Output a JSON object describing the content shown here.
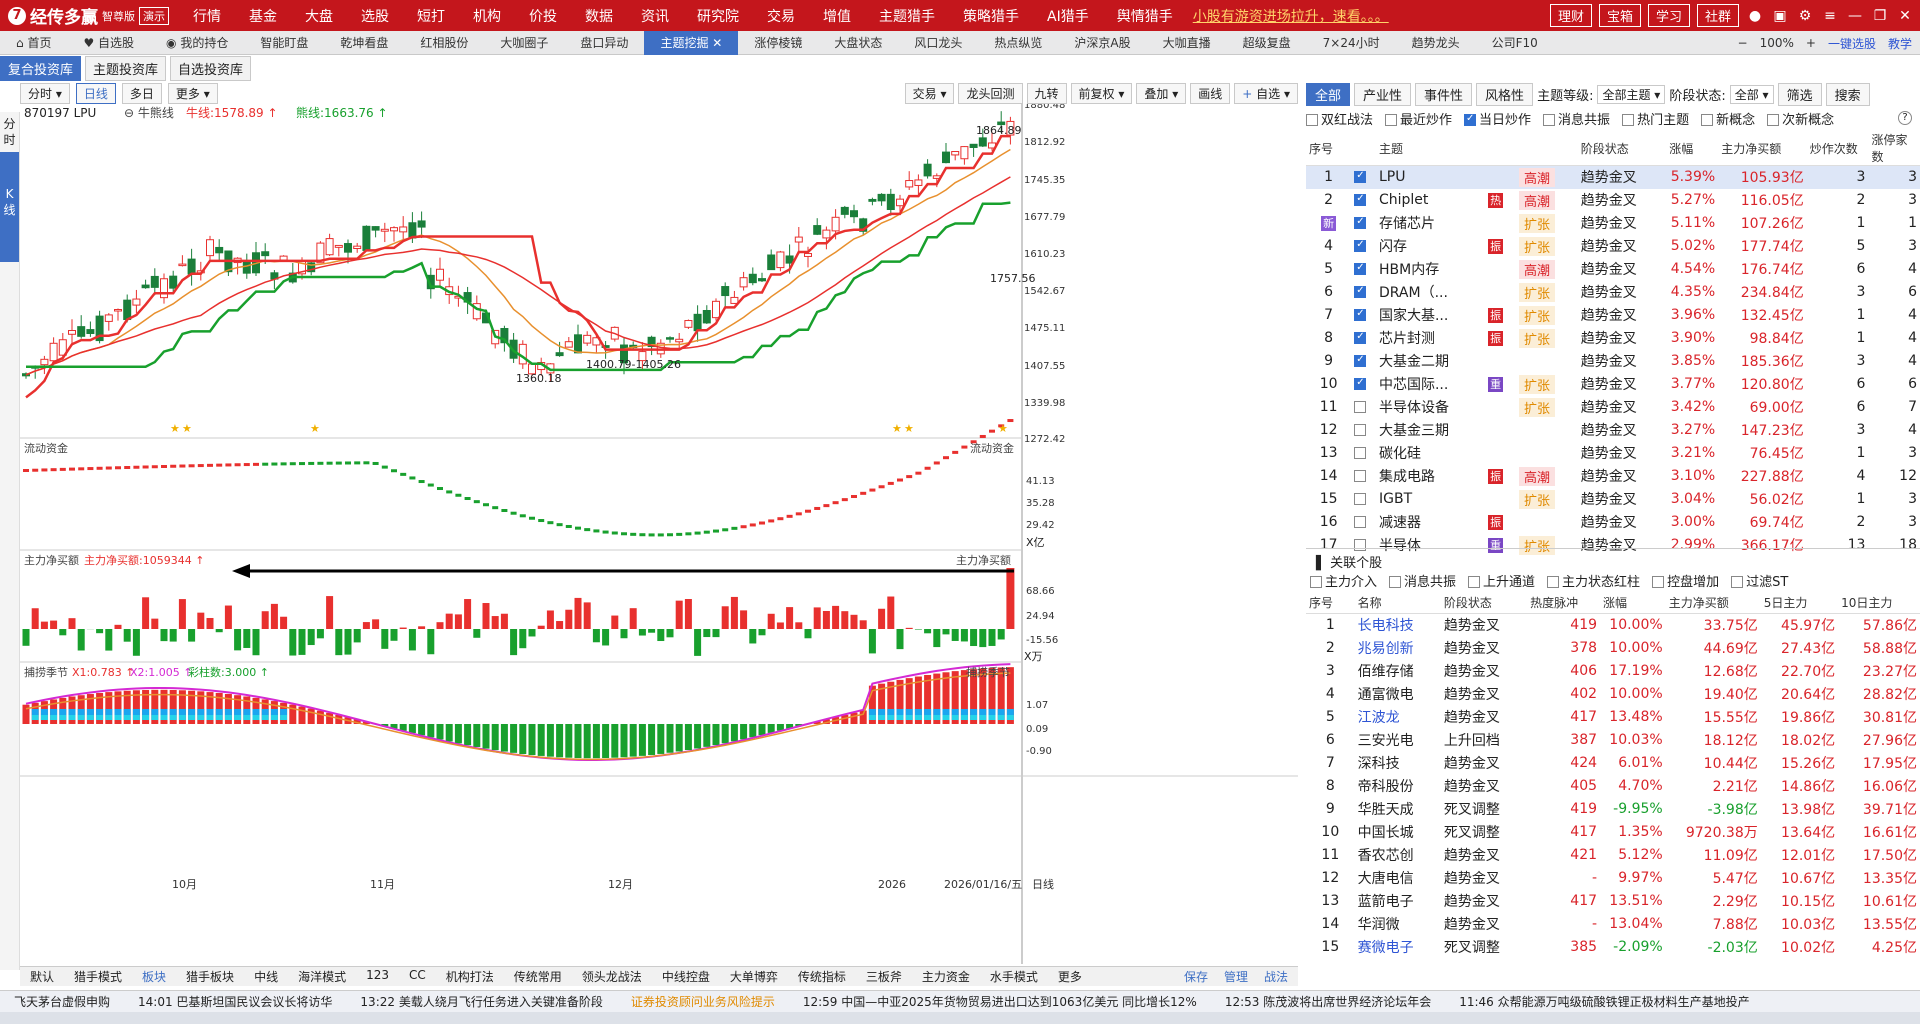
{
  "app": {
    "logo": "经传多赢",
    "edition": "智尊版",
    "demo": "演示"
  },
  "menus": [
    "行情",
    "基金",
    "大盘",
    "选股",
    "短打",
    "机构",
    "价投",
    "数据",
    "资讯",
    "研究院",
    "交易",
    "增值",
    "主题猎手",
    "策略猎手",
    "AI猎手",
    "舆情猎手"
  ],
  "menu_alert": "小股有游资进场拉升，速看。。。",
  "menu_right": [
    "理财",
    "宝箱",
    "学习",
    "社群"
  ],
  "tabs": [
    {
      "label": "首页",
      "icon": "home-icon"
    },
    {
      "label": "自选股",
      "icon": "heart-icon"
    },
    {
      "label": "我的持仓",
      "icon": "coin-icon"
    },
    {
      "label": "智能盯盘"
    },
    {
      "label": "乾坤看盘"
    },
    {
      "label": "红相股份"
    },
    {
      "label": "大咖圈子"
    },
    {
      "label": "盘口异动"
    },
    {
      "label": "主题挖掘",
      "active": true
    },
    {
      "label": "涨停棱镜"
    },
    {
      "label": "大盘状态"
    },
    {
      "label": "风口龙头"
    },
    {
      "label": "热点纵览"
    },
    {
      "label": "沪深京A股"
    },
    {
      "label": "大咖直播"
    },
    {
      "label": "超级复盘"
    },
    {
      "label": "7×24小时"
    },
    {
      "label": "趋势龙头"
    },
    {
      "label": "公司F10"
    }
  ],
  "tab_tools": {
    "zoom": "100%",
    "oneclick": "一键选股",
    "teach": "教学"
  },
  "subtabs": [
    "复合投资库",
    "主题投资库",
    "自选投资库"
  ],
  "leftstrip": [
    "分时",
    "K线"
  ],
  "chart_toolbar": {
    "left": [
      "分时",
      "日线",
      "多日",
      "更多"
    ],
    "right": [
      "交易",
      "龙头回测",
      "九转",
      "前复权",
      "叠加",
      "画线",
      "自选"
    ]
  },
  "chart": {
    "code": "870197 LPU",
    "indicator": "牛熊线",
    "bull_label": "牛线:1578.89",
    "bear_label": "熊线:1663.76",
    "y_ticks": [
      "1880.48",
      "1812.92",
      "1745.35",
      "1677.79",
      "1610.23",
      "1542.67",
      "1475.11",
      "1407.55",
      "1339.98",
      "1272.42"
    ],
    "annotations": {
      "high": "1864.89",
      "last": "1757.56",
      "range": "1400.79-1405.26",
      "low": "1360.18"
    },
    "flow_title": "流动资金",
    "flow_ticks": [
      "41.13",
      "35.28",
      "29.42"
    ],
    "flow_unit": "X亿",
    "main_title": "主力净买额",
    "main_value": "主力净买额:1059344",
    "main_ticks": [
      "68.66",
      "24.94",
      "-15.56"
    ],
    "main_unit": "X万",
    "catch_title": "捕捞季节",
    "catch_x1": "X1:0.783",
    "catch_x2": "X2:1.005",
    "catch_bar": "彩柱数:3.000",
    "catch_ticks": [
      "1.07",
      "0.09",
      "-0.90"
    ],
    "x_labels": [
      "10月",
      "11月",
      "12月",
      "2026",
      "2026/01/16/五"
    ],
    "x_unit": "日线"
  },
  "bottom_bar": [
    "默认",
    "猎手模式",
    "板块",
    "猎手板块",
    "中线",
    "海洋模式",
    "123",
    "CC",
    "机构打法",
    "传统常用",
    "领头龙战法",
    "中线控盘",
    "大单博弈",
    "传统指标",
    "三板斧",
    "主力资金",
    "水手模式",
    "更多"
  ],
  "bottom_right": [
    "保存",
    "管理",
    "战法"
  ],
  "ticker": [
    {
      "text": "飞天茅台虚假申购"
    },
    {
      "text": "14:01 巴基斯坦国民议会议长将访华"
    },
    {
      "text": "13:22 美载人绕月飞行任务进入关键准备阶段"
    },
    {
      "text": "证券投资顾问业务风险提示",
      "warn": true
    },
    {
      "text": "12:59 中国—中亚2025年货物贸易进出口达到1063亿美元 同比增长12%"
    },
    {
      "text": "12:53 陈茂波将出席世界经济论坛年会"
    },
    {
      "text": "11:46 众帮能源万吨级硫酸铁锂正极材料生产基地投产"
    }
  ],
  "right_panel": {
    "tabs": [
      "全部",
      "产业性",
      "事件性",
      "风格性"
    ],
    "level_label": "主题等级:",
    "level_value": "全部主题",
    "stage_label": "阶段状态:",
    "stage_value": "全部",
    "filter": "筛选",
    "search": "搜索",
    "filters": [
      {
        "label": "双红战法",
        "on": false
      },
      {
        "label": "最近炒作",
        "on": false
      },
      {
        "label": "当日炒作",
        "on": true
      },
      {
        "label": "消息共振",
        "on": false
      },
      {
        "label": "热门主题",
        "on": false
      },
      {
        "label": "新概念",
        "on": false
      },
      {
        "label": "次新概念",
        "on": false
      }
    ],
    "theme_headers": [
      "序号",
      "",
      "主题",
      "",
      "",
      "阶段状态",
      "涨幅",
      "主力净买额",
      "炒作次数",
      "涨停家数"
    ],
    "themes": [
      {
        "no": "1",
        "on": true,
        "name": "LPU",
        "tag": "",
        "stage": "高潮",
        "phase": "趋势金叉",
        "chg": "5.39%",
        "net": "105.93亿",
        "times": "3",
        "limit": "3"
      },
      {
        "no": "2",
        "on": true,
        "name": "Chiplet",
        "tag": "热",
        "stage": "高潮",
        "phase": "趋势金叉",
        "chg": "5.27%",
        "net": "116.05亿",
        "times": "2",
        "limit": "3"
      },
      {
        "no": "新",
        "on": true,
        "name": "存储芯片",
        "tag": "",
        "stage": "扩张",
        "phase": "趋势金叉",
        "chg": "5.11%",
        "net": "107.26亿",
        "times": "1",
        "limit": "1"
      },
      {
        "no": "4",
        "on": true,
        "name": "闪存",
        "tag": "振",
        "stage": "扩张",
        "phase": "趋势金叉",
        "chg": "5.02%",
        "net": "177.74亿",
        "times": "5",
        "limit": "3"
      },
      {
        "no": "5",
        "on": true,
        "name": "HBM内存",
        "tag": "",
        "stage": "高潮",
        "phase": "趋势金叉",
        "chg": "4.54%",
        "net": "176.74亿",
        "times": "6",
        "limit": "4"
      },
      {
        "no": "6",
        "on": true,
        "name": "DRAM（...",
        "tag": "",
        "stage": "扩张",
        "phase": "趋势金叉",
        "chg": "4.35%",
        "net": "234.84亿",
        "times": "3",
        "limit": "6"
      },
      {
        "no": "7",
        "on": true,
        "name": "国家大基...",
        "tag": "振",
        "stage": "扩张",
        "phase": "趋势金叉",
        "chg": "3.96%",
        "net": "132.45亿",
        "times": "1",
        "limit": "4"
      },
      {
        "no": "8",
        "on": true,
        "name": "芯片封测",
        "tag": "振",
        "stage": "扩张",
        "phase": "趋势金叉",
        "chg": "3.90%",
        "net": "98.84亿",
        "times": "1",
        "limit": "4"
      },
      {
        "no": "9",
        "on": true,
        "name": "大基金二期",
        "tag": "",
        "stage": "",
        "phase": "趋势金叉",
        "chg": "3.85%",
        "net": "185.36亿",
        "times": "3",
        "limit": "4"
      },
      {
        "no": "10",
        "on": true,
        "name": "中芯国际...",
        "tag": "重",
        "stage": "扩张",
        "phase": "趋势金叉",
        "chg": "3.77%",
        "net": "120.80亿",
        "times": "6",
        "limit": "6"
      },
      {
        "no": "11",
        "on": false,
        "name": "半导体设备",
        "tag": "",
        "stage": "扩张",
        "phase": "趋势金叉",
        "chg": "3.42%",
        "net": "69.00亿",
        "times": "6",
        "limit": "7"
      },
      {
        "no": "12",
        "on": false,
        "name": "大基金三期",
        "tag": "",
        "stage": "",
        "phase": "趋势金叉",
        "chg": "3.27%",
        "net": "147.23亿",
        "times": "3",
        "limit": "4"
      },
      {
        "no": "13",
        "on": false,
        "name": "碳化硅",
        "tag": "",
        "stage": "",
        "phase": "趋势金叉",
        "chg": "3.21%",
        "net": "76.45亿",
        "times": "1",
        "limit": "3"
      },
      {
        "no": "14",
        "on": false,
        "name": "集成电路",
        "tag": "振",
        "stage": "高潮",
        "phase": "趋势金叉",
        "chg": "3.10%",
        "net": "227.88亿",
        "times": "4",
        "limit": "12"
      },
      {
        "no": "15",
        "on": false,
        "name": "IGBT",
        "tag": "",
        "stage": "扩张",
        "phase": "趋势金叉",
        "chg": "3.04%",
        "net": "56.02亿",
        "times": "1",
        "limit": "3"
      },
      {
        "no": "16",
        "on": false,
        "name": "减速器",
        "tag": "振",
        "stage": "",
        "phase": "趋势金叉",
        "chg": "3.00%",
        "net": "69.74亿",
        "times": "2",
        "limit": "3"
      },
      {
        "no": "17",
        "on": false,
        "name": "半导体",
        "tag": "重",
        "stage": "扩张",
        "phase": "趋势金叉",
        "chg": "2.99%",
        "net": "366.17亿",
        "times": "13",
        "limit": "18"
      }
    ],
    "related_title": "关联个股",
    "related_filters": [
      "主力介入",
      "消息共振",
      "上升通道",
      "主力状态红柱",
      "控盘增加",
      "过滤ST"
    ],
    "related_headers": [
      "序号",
      "名称",
      "阶段状态",
      "热度脉冲",
      "涨幅",
      "主力净买额",
      "5日主力",
      "10日主力"
    ],
    "related": [
      {
        "no": "1",
        "name": "长电科技",
        "blue": true,
        "phase": "趋势金叉",
        "heat": "419",
        "chg": "10.00%",
        "net": "33.75亿",
        "d5": "45.97亿",
        "d10": "57.86亿"
      },
      {
        "no": "2",
        "name": "兆易创新",
        "blue": true,
        "phase": "趋势金叉",
        "heat": "378",
        "chg": "10.00%",
        "net": "44.69亿",
        "d5": "27.43亿",
        "d10": "58.88亿"
      },
      {
        "no": "3",
        "name": "佰维存储",
        "blue": false,
        "phase": "趋势金叉",
        "heat": "406",
        "chg": "17.19%",
        "net": "12.68亿",
        "d5": "22.70亿",
        "d10": "23.27亿"
      },
      {
        "no": "4",
        "name": "通富微电",
        "blue": false,
        "phase": "趋势金叉",
        "heat": "402",
        "chg": "10.00%",
        "net": "19.40亿",
        "d5": "20.64亿",
        "d10": "28.82亿"
      },
      {
        "no": "5",
        "name": "江波龙",
        "blue": true,
        "phase": "趋势金叉",
        "heat": "417",
        "chg": "13.48%",
        "net": "15.55亿",
        "d5": "19.86亿",
        "d10": "30.81亿"
      },
      {
        "no": "6",
        "name": "三安光电",
        "blue": false,
        "phase": "上升回档",
        "heat": "387",
        "chg": "10.03%",
        "net": "18.12亿",
        "d5": "18.02亿",
        "d10": "27.96亿"
      },
      {
        "no": "7",
        "name": "深科技",
        "blue": false,
        "phase": "趋势金叉",
        "heat": "424",
        "chg": "6.01%",
        "net": "10.44亿",
        "d5": "15.26亿",
        "d10": "17.95亿"
      },
      {
        "no": "8",
        "name": "帝科股份",
        "blue": false,
        "phase": "趋势金叉",
        "heat": "405",
        "chg": "4.70%",
        "net": "2.21亿",
        "d5": "14.86亿",
        "d10": "16.06亿"
      },
      {
        "no": "9",
        "name": "华胜天成",
        "blue": false,
        "phase": "死叉调整",
        "heat": "419",
        "chg": "-9.95%",
        "net": "-3.98亿",
        "d5": "13.98亿",
        "d10": "39.71亿"
      },
      {
        "no": "10",
        "name": "中国长城",
        "blue": false,
        "phase": "死叉调整",
        "heat": "417",
        "chg": "1.35%",
        "net": "9720.38万",
        "d5": "13.64亿",
        "d10": "16.61亿"
      },
      {
        "no": "11",
        "name": "香农芯创",
        "blue": false,
        "phase": "趋势金叉",
        "heat": "421",
        "chg": "5.12%",
        "net": "11.09亿",
        "d5": "12.01亿",
        "d10": "17.50亿"
      },
      {
        "no": "12",
        "name": "大唐电信",
        "blue": false,
        "phase": "趋势金叉",
        "heat": "-",
        "chg": "9.97%",
        "net": "5.47亿",
        "d5": "10.67亿",
        "d10": "13.35亿"
      },
      {
        "no": "13",
        "name": "蓝箭电子",
        "blue": false,
        "phase": "趋势金叉",
        "heat": "417",
        "chg": "13.51%",
        "net": "2.29亿",
        "d5": "10.15亿",
        "d10": "10.61亿"
      },
      {
        "no": "14",
        "name": "华润微",
        "blue": false,
        "phase": "趋势金叉",
        "heat": "-",
        "chg": "13.04%",
        "net": "7.88亿",
        "d5": "10.03亿",
        "d10": "13.55亿"
      },
      {
        "no": "15",
        "name": "赛微电子",
        "blue": true,
        "phase": "死叉调整",
        "heat": "385",
        "chg": "-2.09%",
        "net": "-2.03亿",
        "d5": "10.02亿",
        "d10": "4.25亿"
      }
    ]
  },
  "colors": {
    "brand_red": "#c4161c",
    "accent_blue": "#3e6fc4",
    "up": "#e8302e",
    "down": "#18a02d",
    "bull": "#e8302e",
    "bear": "#18a02d"
  }
}
